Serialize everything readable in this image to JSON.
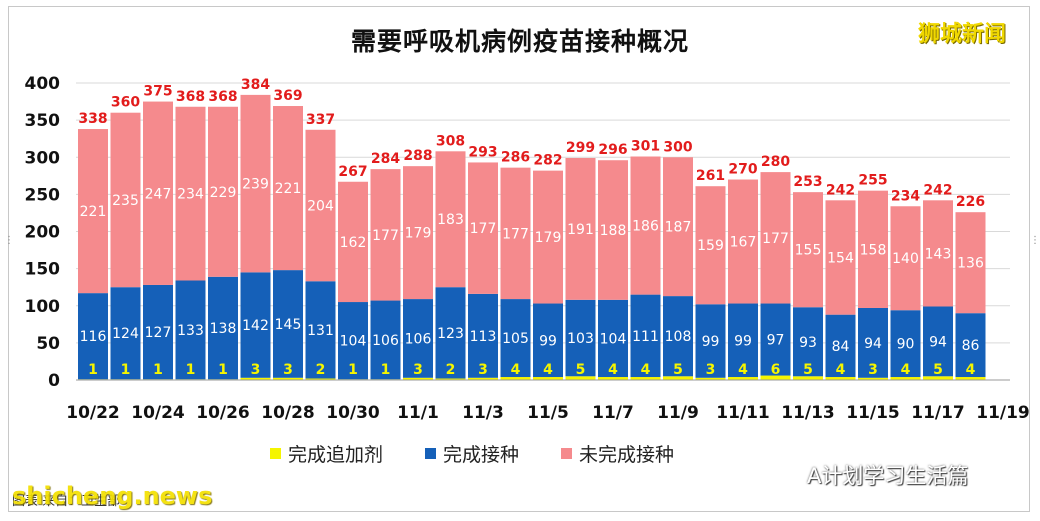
{
  "title": "需要呼吸机病例疫苗接种概况",
  "brand": "狮城新闻",
  "legend": {
    "booster": "完成追加剂",
    "vaccinated": "完成接种",
    "unvaccinated": "未完成接种"
  },
  "watermark": {
    "wechat": "A计划学习生活篇",
    "site": "shicheng.news",
    "source": "图表    来自：卫生部"
  },
  "colors": {
    "booster": "#f5f500",
    "vaccinated": "#1560b8",
    "unvaccinated": "#f58a8d",
    "total_label": "#e21c1c"
  },
  "chart_data": {
    "type": "bar",
    "stacked": true,
    "title": "需要呼吸机病例疫苗接种概况",
    "ylim": [
      0,
      400
    ],
    "yticks": [
      0,
      50,
      100,
      150,
      200,
      250,
      300,
      350,
      400
    ],
    "xtick_labels": [
      "10/22",
      "10/24",
      "10/26",
      "10/28",
      "10/30",
      "11/1",
      "11/3",
      "11/5",
      "11/7",
      "11/9",
      "11/11",
      "11/13",
      "11/15",
      "11/17",
      "11/19"
    ],
    "categories": [
      "10/22",
      "10/23",
      "10/24",
      "10/25",
      "10/26",
      "10/27",
      "10/28",
      "10/29",
      "10/30",
      "10/31",
      "11/1",
      "11/2",
      "11/3",
      "11/4",
      "11/5",
      "11/6",
      "11/7",
      "11/8",
      "11/9",
      "11/10",
      "11/11",
      "11/12",
      "11/13",
      "11/14",
      "11/15",
      "11/16",
      "11/17",
      "11/18"
    ],
    "series": [
      {
        "name": "完成追加剂",
        "values": [
          1,
          1,
          1,
          1,
          1,
          3,
          3,
          2,
          1,
          1,
          3,
          2,
          3,
          4,
          4,
          5,
          4,
          4,
          5,
          3,
          4,
          6,
          5,
          4,
          3,
          4,
          5,
          4
        ]
      },
      {
        "name": "完成接种",
        "values": [
          116,
          124,
          127,
          133,
          138,
          142,
          145,
          131,
          104,
          106,
          106,
          123,
          113,
          105,
          99,
          103,
          104,
          111,
          108,
          99,
          99,
          97,
          93,
          84,
          94,
          90,
          94,
          86
        ]
      },
      {
        "name": "未完成接种",
        "values": [
          221,
          235,
          247,
          234,
          229,
          239,
          221,
          204,
          162,
          177,
          179,
          183,
          177,
          177,
          179,
          191,
          188,
          186,
          187,
          159,
          167,
          177,
          155,
          154,
          158,
          140,
          143,
          136
        ]
      }
    ],
    "totals": [
      338,
      360,
      375,
      368,
      368,
      384,
      369,
      337,
      267,
      284,
      288,
      308,
      293,
      286,
      282,
      299,
      296,
      301,
      300,
      261,
      270,
      280,
      253,
      242,
      255,
      234,
      242,
      226
    ],
    "grid": true,
    "legend_position": "bottom"
  }
}
